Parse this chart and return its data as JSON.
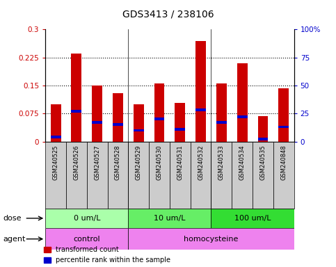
{
  "title": "GDS3413 / 238106",
  "samples": [
    "GSM240525",
    "GSM240526",
    "GSM240527",
    "GSM240528",
    "GSM240529",
    "GSM240530",
    "GSM240531",
    "GSM240532",
    "GSM240533",
    "GSM240534",
    "GSM240535",
    "GSM240848"
  ],
  "red_values": [
    0.1,
    0.235,
    0.15,
    0.13,
    0.1,
    0.155,
    0.103,
    0.268,
    0.155,
    0.21,
    0.068,
    0.143
  ],
  "blue_percentile": [
    4,
    27,
    17,
    15,
    10,
    20,
    11,
    28,
    17,
    22,
    2,
    13
  ],
  "ylim_left": [
    0,
    0.3
  ],
  "ylim_right": [
    0,
    100
  ],
  "yticks_left": [
    0,
    0.075,
    0.15,
    0.225,
    0.3
  ],
  "ytick_labels_left": [
    "0",
    "0.075",
    "0.15",
    "0.225",
    "0.3"
  ],
  "yticks_right": [
    0,
    25,
    50,
    75,
    100
  ],
  "ytick_labels_right": [
    "0",
    "25",
    "50",
    "75",
    "100%"
  ],
  "dose_groups": [
    {
      "label": "0 um/L",
      "start": 0,
      "end": 4,
      "color": "#aaffaa"
    },
    {
      "label": "10 um/L",
      "start": 4,
      "end": 8,
      "color": "#66ee66"
    },
    {
      "label": "100 um/L",
      "start": 8,
      "end": 12,
      "color": "#33dd33"
    }
  ],
  "dose_label": "dose",
  "agent_label": "agent",
  "agent_ctrl_label": "control",
  "agent_homo_label": "homocysteine",
  "agent_color": "#ee82ee",
  "legend_red": "transformed count",
  "legend_blue": "percentile rank within the sample",
  "bar_color": "#cc0000",
  "blue_color": "#0000cc",
  "left_axis_color": "#cc0000",
  "right_axis_color": "#0000cc",
  "xtick_bg_color": "#cccccc",
  "bar_width": 0.5
}
